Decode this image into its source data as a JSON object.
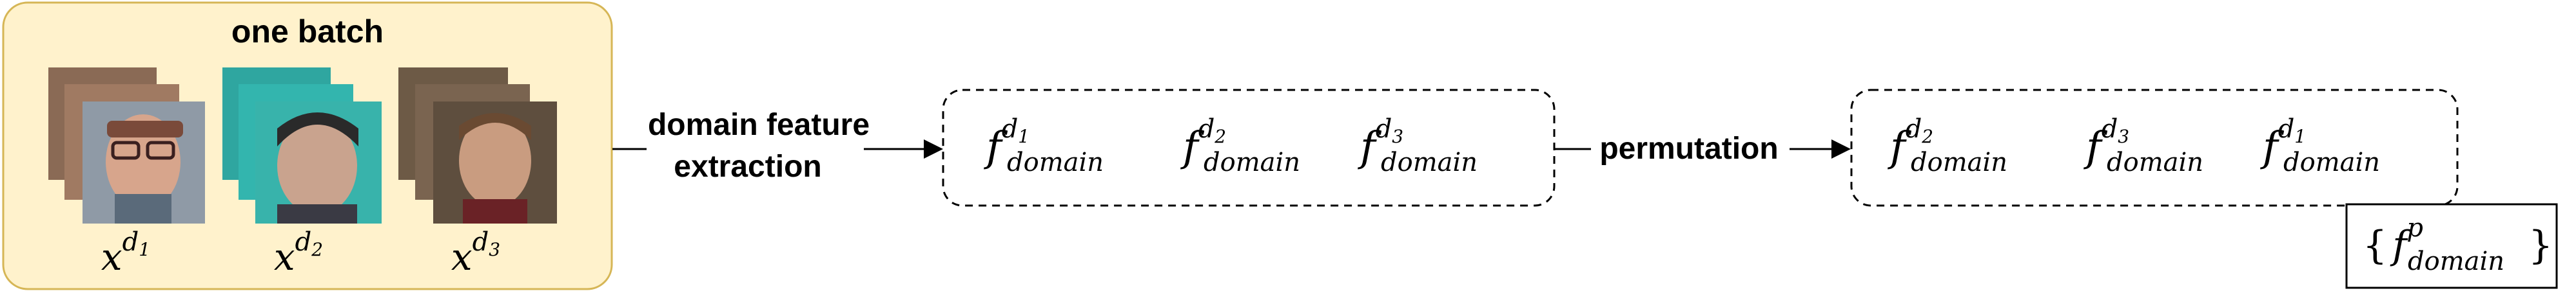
{
  "batch": {
    "title": "one batch",
    "fill": "#fff2cc",
    "stroke": "#d6b656",
    "samples": [
      {
        "base": "x",
        "sup": "d",
        "sub": "1"
      },
      {
        "base": "x",
        "sup": "d",
        "sub": "2"
      },
      {
        "base": "x",
        "sup": "d",
        "sub": "3"
      }
    ]
  },
  "extraction": {
    "line1": "domain feature",
    "line2": "extraction"
  },
  "features": {
    "items": [
      {
        "f": "f",
        "sub": "domain",
        "sup": "d",
        "supsub": "1"
      },
      {
        "f": "f",
        "sub": "domain",
        "sup": "d",
        "supsub": "2"
      },
      {
        "f": "f",
        "sub": "domain",
        "sup": "d",
        "supsub": "3"
      }
    ]
  },
  "permutation": {
    "label": "permutation"
  },
  "permuted": {
    "items": [
      {
        "f": "f",
        "sub": "domain",
        "sup": "d",
        "supsub": "2"
      },
      {
        "f": "f",
        "sub": "domain",
        "sup": "d",
        "supsub": "3"
      },
      {
        "f": "f",
        "sub": "domain",
        "sup": "d",
        "supsub": "1"
      }
    ]
  },
  "set": {
    "open": "{",
    "f": "f",
    "sup": "p",
    "sub": "domain",
    "close": "}"
  }
}
